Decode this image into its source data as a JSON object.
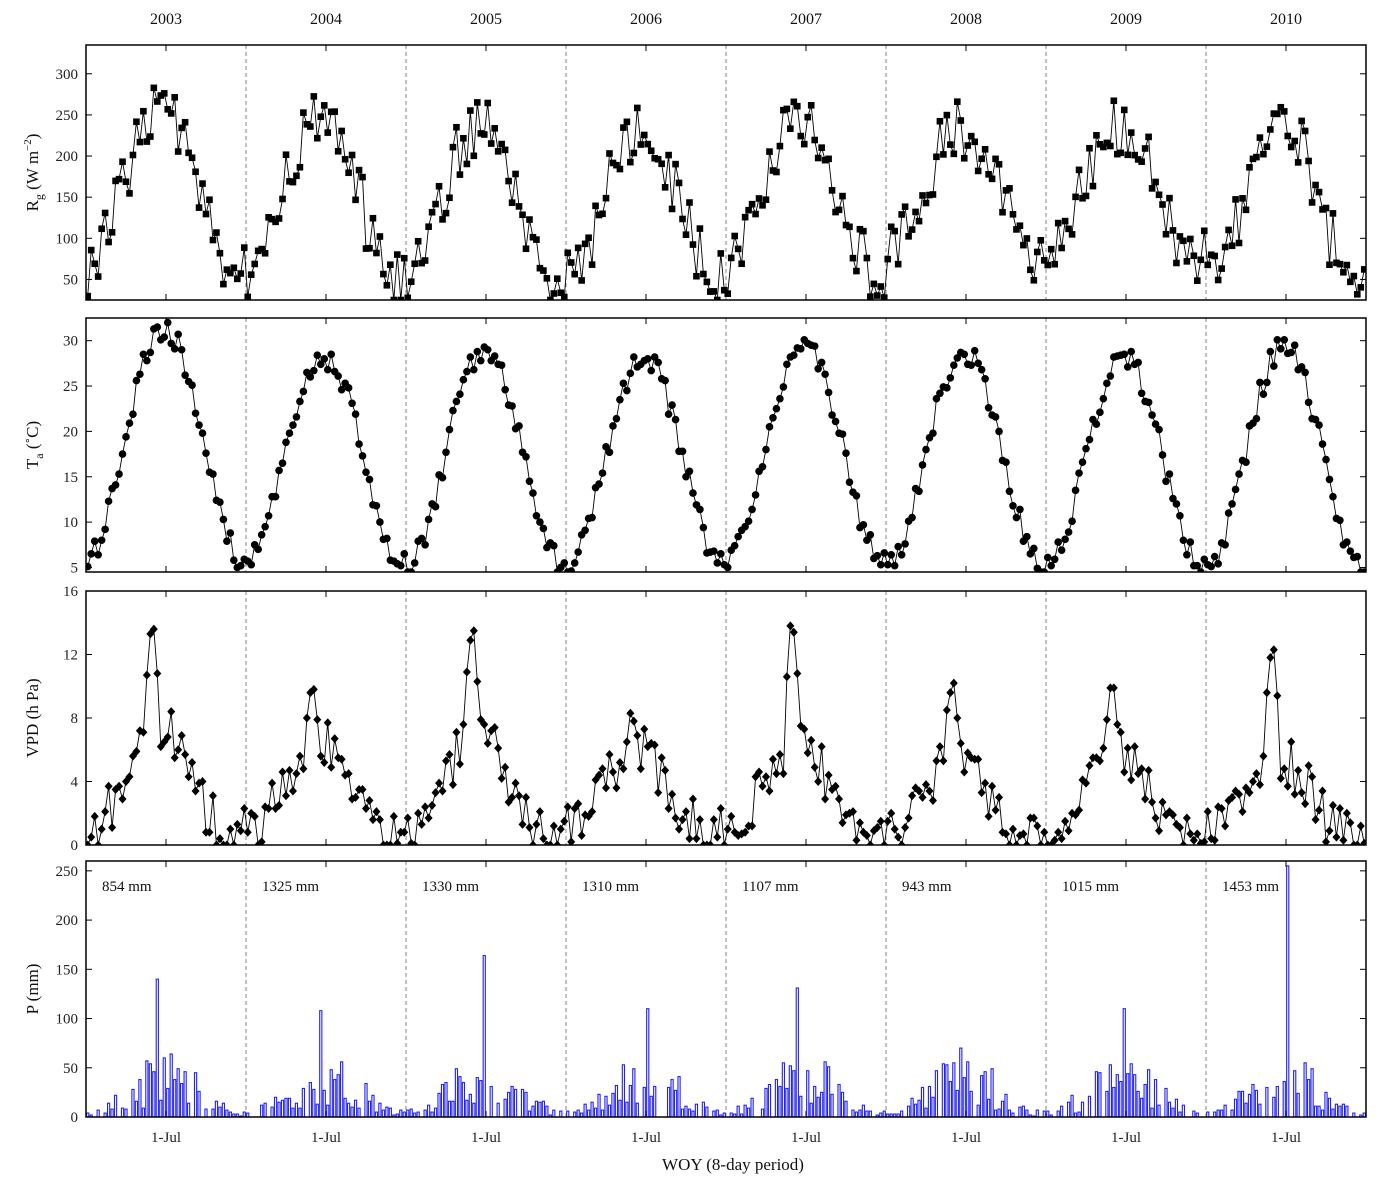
{
  "chart_data": {
    "type": "multi-panel time series",
    "years": [
      "2003",
      "2004",
      "2005",
      "2006",
      "2007",
      "2008",
      "2009",
      "2010"
    ],
    "x_tick_label": "1-Jul",
    "xlabel": "WOY (8-day period)",
    "periods_per_year": 46,
    "panels": [
      {
        "id": "rg",
        "type": "line",
        "marker": "square",
        "ylabel_main": "R",
        "ylabel_sub": "g",
        "ylabel_unit": " (W m",
        "ylabel_sup": "−2",
        "ylabel_close": ")",
        "ylim": [
          25,
          335
        ],
        "yticks": [
          50,
          100,
          150,
          200,
          250,
          300
        ],
        "annual_cycle": {
          "min": [
            52,
            42,
            48,
            46,
            58,
            72,
            72,
            38
          ],
          "max": [
            255,
            250,
            238,
            225,
            240,
            235,
            240,
            240
          ],
          "peak_period": 21,
          "noise": 38
        },
        "values": []
      },
      {
        "id": "ta",
        "type": "line",
        "marker": "circle",
        "ylabel_main": "T",
        "ylabel_sub": "a",
        "ylabel_unit": " (˚C)",
        "ylim": [
          4.5,
          32.5
        ],
        "yticks": [
          5,
          10,
          15,
          20,
          25,
          30
        ],
        "annual_cycle": {
          "min": [
            5.5,
            5.5,
            5.0,
            5.3,
            5.5,
            5.0,
            5.0,
            5.0
          ],
          "max": [
            31.5,
            28.3,
            29.0,
            28.0,
            29.8,
            28.7,
            28.2,
            29.3
          ],
          "peak_period": 22,
          "noise": 1.4
        },
        "values": []
      },
      {
        "id": "vpd",
        "type": "line",
        "marker": "diamond",
        "ylabel": "VPD (h Pa)",
        "ylim": [
          0,
          16
        ],
        "yticks": [
          0,
          4,
          8,
          12,
          16
        ],
        "annual_cycle": {
          "min": [
            0.8,
            0.8,
            0.3,
            0.8,
            0.8,
            0.5,
            0.6,
            0.6
          ],
          "max": [
            7.5,
            6.5,
            7.0,
            6.0,
            6.5,
            5.5,
            6.0,
            5.5
          ],
          "peak_period": 20,
          "noise": 1.6,
          "spike": [
            15.0,
            10.5,
            14.6,
            8.8,
            14.8,
            10.9,
            11.0,
            13.3
          ]
        },
        "values": []
      },
      {
        "id": "p",
        "type": "bar",
        "ylabel": "P (mm)",
        "ylim": [
          0,
          260
        ],
        "yticks": [
          0,
          50,
          100,
          150,
          200,
          250
        ],
        "annual_totals": [
          "854 mm",
          "1325 mm",
          "1330 mm",
          "1310 mm",
          "1107 mm",
          "943 mm",
          "1015 mm",
          "1453 mm"
        ],
        "annual_max": [
          140,
          108,
          164,
          110,
          131,
          70,
          110,
          255
        ],
        "values": []
      }
    ],
    "grid": false,
    "year_dividers": "dashed vertical lines between years"
  }
}
